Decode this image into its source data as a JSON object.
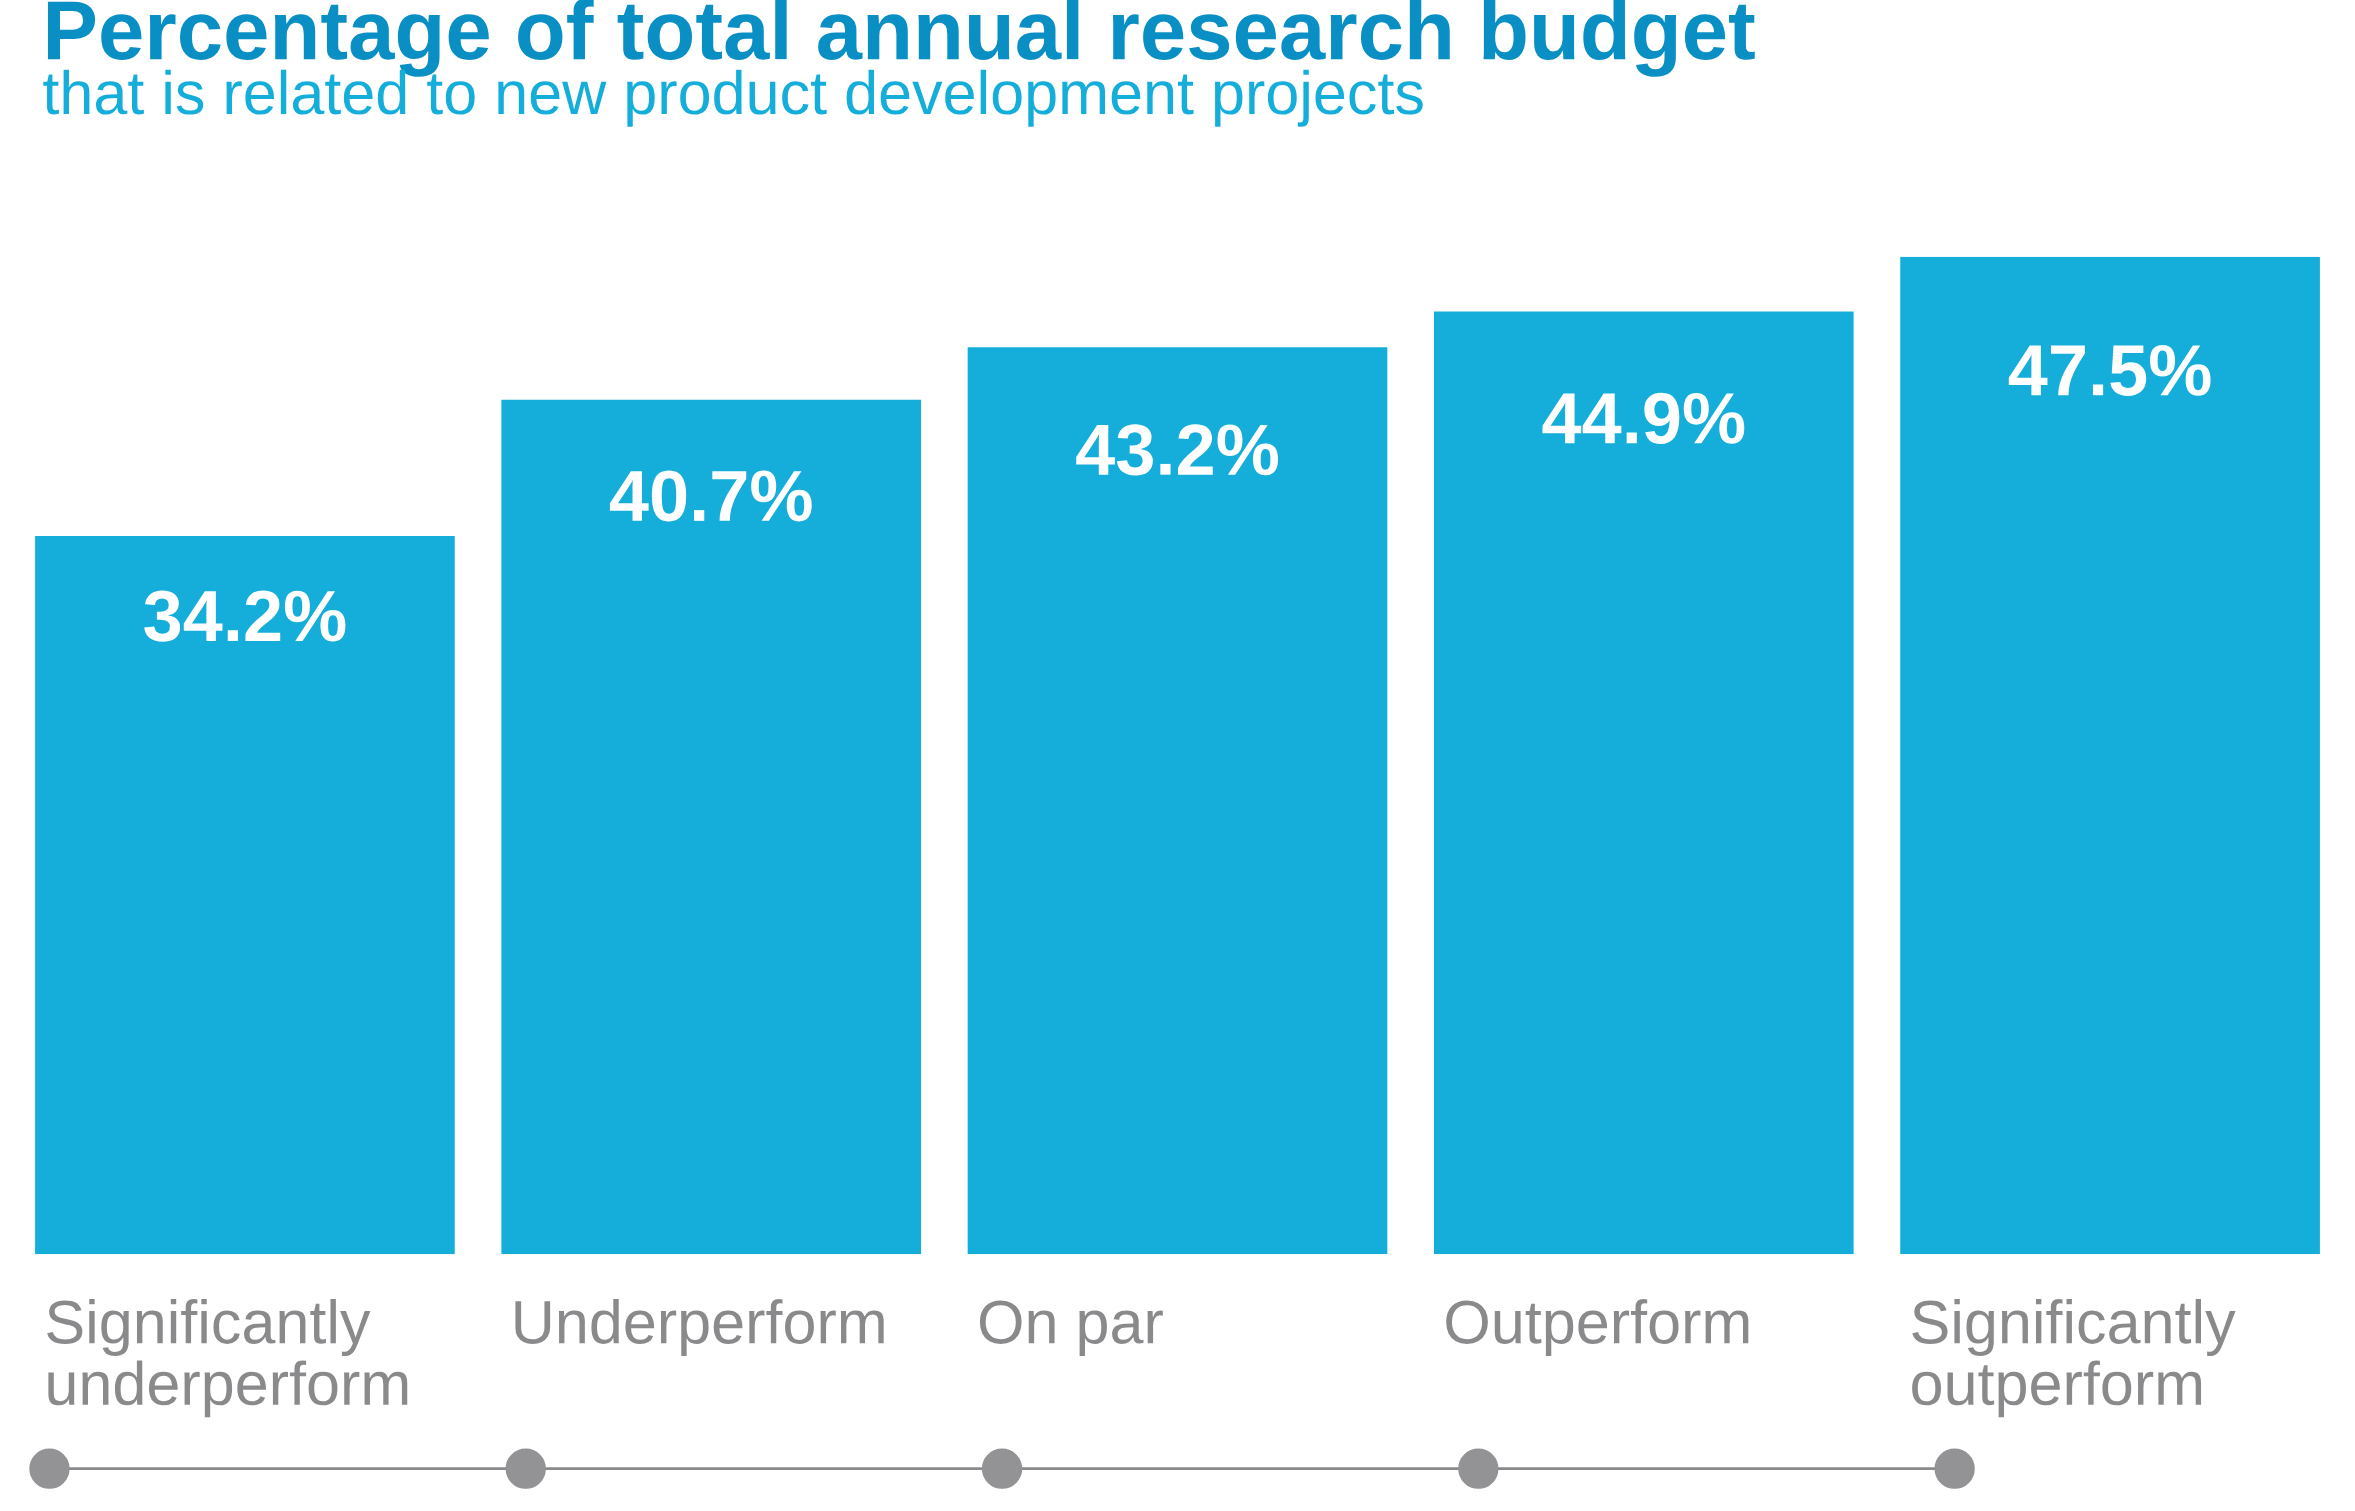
{
  "chart_data": {
    "type": "bar",
    "title": "Percentage of total annual research budget",
    "subtitle": "that is related to new product development projects",
    "categories": [
      "Significantly\nunderperform",
      "Underperform",
      "On par",
      "Outperform",
      "Significantly\noutperform"
    ],
    "values": [
      34.2,
      40.7,
      43.2,
      44.9,
      47.5
    ],
    "color": "#15aedb",
    "value_labels": [
      "34.2%",
      "40.7%",
      "43.2%",
      "44.9%",
      "47.5%"
    ],
    "tick_labels": "x"
  }
}
